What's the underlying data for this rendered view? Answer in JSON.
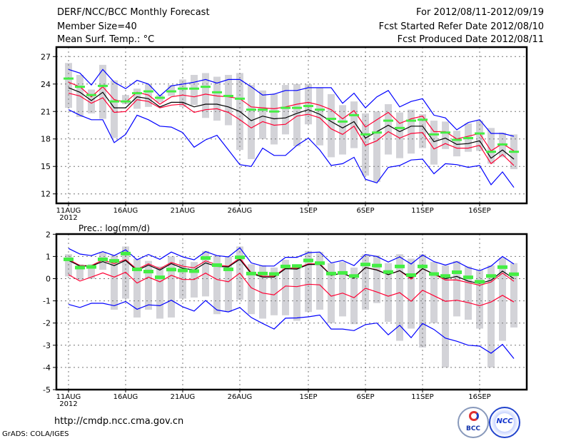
{
  "header": {
    "title": "DERF/NCC/BCC Monthly Forecast",
    "member_size": "Member Size=40",
    "variable": "Mean Surf. Temp.: °C",
    "period": "For 2012/08/11-2012/09/19",
    "started": "Fcst Started Refer Date 2012/08/10",
    "produced": "Fcst Produced Date 2012/08/11"
  },
  "footer": {
    "url": "http://cmdp.ncc.cma.gov.cn",
    "credit": "GrADS: COLA/IGES",
    "logos": [
      "BCC",
      "NCC"
    ]
  },
  "chart_data": [
    {
      "type": "line",
      "title": "Mean Surf. Temp.: °C",
      "x_start": "2012-08-11",
      "days": 40,
      "xtick_labels": [
        "11AUG",
        "16AUG",
        "21AUG",
        "26AUG",
        "1SEP",
        "6SEP",
        "11SEP",
        "16SEP"
      ],
      "xtick_days": [
        0,
        5,
        10,
        15,
        21,
        26,
        31,
        36
      ],
      "year_label": "2012",
      "ylim": [
        11,
        28
      ],
      "yticks": [
        12,
        15,
        18,
        21,
        24,
        27
      ],
      "grid": true,
      "series": [
        {
          "name": "blue-max",
          "color": "#0000ff",
          "values": [
            25.6,
            25.2,
            23.9,
            25.6,
            24.2,
            23.5,
            24.4,
            24.0,
            22.7,
            23.8,
            24.0,
            24.2,
            24.5,
            24.1,
            24.5,
            24.5,
            23.7,
            22.8,
            22.9,
            23.3,
            23.3,
            23.6,
            23.6,
            23.6,
            21.9,
            23.0,
            21.4,
            22.6,
            23.3,
            21.5,
            22.1,
            22.4,
            20.6,
            20.3,
            19.0,
            19.8,
            20.1,
            18.6,
            18.6,
            18.3
          ]
        },
        {
          "name": "red-upper",
          "color": "#ff0033",
          "values": [
            24.2,
            23.7,
            22.6,
            23.7,
            22.3,
            22.0,
            23.1,
            22.8,
            21.8,
            22.6,
            22.8,
            22.6,
            22.9,
            22.7,
            22.6,
            22.4,
            21.5,
            21.4,
            21.3,
            21.5,
            21.8,
            22.0,
            21.7,
            21.2,
            20.2,
            21.1,
            19.3,
            20.1,
            20.9,
            19.7,
            20.2,
            20.5,
            18.8,
            18.8,
            18.0,
            18.3,
            18.6,
            16.7,
            17.5,
            16.7
          ]
        },
        {
          "name": "mean",
          "color": "#000000",
          "values": [
            23.6,
            23.1,
            22.2,
            23.1,
            21.4,
            21.4,
            22.6,
            22.4,
            21.5,
            22.0,
            22.0,
            21.5,
            21.8,
            21.8,
            21.5,
            21.0,
            20.0,
            20.5,
            20.2,
            20.3,
            20.8,
            21.2,
            20.7,
            19.9,
            19.2,
            19.9,
            18.1,
            18.8,
            19.5,
            18.8,
            19.4,
            19.4,
            17.7,
            18.1,
            17.4,
            17.5,
            17.8,
            15.9,
            16.8,
            15.8
          ]
        },
        {
          "name": "red-lower",
          "color": "#ff0033",
          "values": [
            23.0,
            22.7,
            21.9,
            22.5,
            20.9,
            21.0,
            22.3,
            22.1,
            21.4,
            21.7,
            21.8,
            20.9,
            21.2,
            21.3,
            20.9,
            20.1,
            19.2,
            19.9,
            19.5,
            19.6,
            20.5,
            20.7,
            20.3,
            19.1,
            18.5,
            19.4,
            17.3,
            17.8,
            18.8,
            18.1,
            18.6,
            18.7,
            16.9,
            17.5,
            17.0,
            17.0,
            17.3,
            15.3,
            16.3,
            15.1
          ]
        },
        {
          "name": "blue-min",
          "color": "#0000ff",
          "values": [
            21.2,
            20.6,
            20.1,
            20.1,
            17.6,
            18.5,
            20.6,
            20.1,
            19.4,
            19.3,
            18.7,
            17.1,
            17.9,
            18.4,
            16.8,
            15.2,
            15.0,
            17.0,
            16.2,
            16.2,
            17.3,
            18.1,
            16.8,
            15.1,
            15.3,
            16.0,
            13.6,
            13.2,
            14.9,
            15.1,
            15.7,
            15.8,
            14.2,
            15.3,
            15.2,
            14.9,
            15.1,
            13.0,
            14.4,
            12.7
          ]
        }
      ],
      "markers": {
        "name": "green-median",
        "color": "#44ee44",
        "values": [
          24.6,
          23.7,
          22.8,
          23.8,
          22.1,
          22.1,
          23.0,
          23.2,
          22.5,
          23.2,
          23.5,
          23.5,
          23.7,
          23.1,
          22.7,
          22.4,
          21.2,
          21.2,
          21.0,
          21.4,
          21.4,
          21.6,
          21.2,
          20.2,
          19.9,
          20.6,
          18.5,
          18.7,
          20.0,
          19.2,
          20.0,
          20.1,
          18.5,
          18.7,
          17.9,
          18.1,
          18.6,
          16.6,
          17.4,
          16.6
        ]
      },
      "ranges": {
        "name": "gray-spread",
        "color": "#d3d3d8",
        "values": [
          [
            21.4,
            26.3
          ],
          [
            20.4,
            25.0
          ],
          [
            20.8,
            23.4
          ],
          [
            20.2,
            26.1
          ],
          [
            18.1,
            24.4
          ],
          [
            21.8,
            22.8
          ],
          [
            21.3,
            23.5
          ],
          [
            21.5,
            24.0
          ],
          [
            22.0,
            22.8
          ],
          [
            22.7,
            23.9
          ],
          [
            21.5,
            24.5
          ],
          [
            21.7,
            25.0
          ],
          [
            20.3,
            25.2
          ],
          [
            20.0,
            24.8
          ],
          [
            19.5,
            25.0
          ],
          [
            16.8,
            25.2
          ],
          [
            15.8,
            23.9
          ],
          [
            18.0,
            23.3
          ],
          [
            17.4,
            22.9
          ],
          [
            18.5,
            23.9
          ],
          [
            17.2,
            24.0
          ],
          [
            19.6,
            24.0
          ],
          [
            17.3,
            23.6
          ],
          [
            16.0,
            22.9
          ],
          [
            16.3,
            21.7
          ],
          [
            17.0,
            22.1
          ],
          [
            14.0,
            20.8
          ],
          [
            13.3,
            21.0
          ],
          [
            16.3,
            21.8
          ],
          [
            15.9,
            20.9
          ],
          [
            16.4,
            21.2
          ],
          [
            17.0,
            20.7
          ],
          [
            15.2,
            20.0
          ],
          [
            16.9,
            19.9
          ],
          [
            16.1,
            18.9
          ],
          [
            16.6,
            19.7
          ],
          [
            16.7,
            20.0
          ],
          [
            15.3,
            19.2
          ],
          [
            16.0,
            18.7
          ],
          [
            14.7,
            18.5
          ]
        ]
      }
    },
    {
      "type": "line",
      "title": "Prec.: log(mm/d)",
      "x_start": "2012-08-11",
      "days": 40,
      "xtick_labels": [
        "11AUG",
        "16AUG",
        "21AUG",
        "26AUG",
        "1SEP",
        "6SEP",
        "11SEP",
        "16SEP"
      ],
      "xtick_days": [
        0,
        5,
        10,
        15,
        21,
        26,
        31,
        36
      ],
      "year_label": "2012",
      "ylim": [
        -5,
        2
      ],
      "yticks": [
        -5,
        -4,
        -3,
        -2,
        -1,
        0,
        1,
        2
      ],
      "grid": true,
      "series": [
        {
          "name": "blue-max",
          "color": "#0000ff",
          "values": [
            1.36,
            1.11,
            1.04,
            1.22,
            1.04,
            1.3,
            0.85,
            1.09,
            0.87,
            1.2,
            0.98,
            0.85,
            1.22,
            1.04,
            0.98,
            1.39,
            0.71,
            0.57,
            0.57,
            0.96,
            0.96,
            1.17,
            1.2,
            0.71,
            0.82,
            0.59,
            1.09,
            1.0,
            0.75,
            0.98,
            0.66,
            1.07,
            0.77,
            0.61,
            0.77,
            0.5,
            0.36,
            0.57,
            1.0,
            0.66
          ]
        },
        {
          "name": "red-upper",
          "color": "#ff0033",
          "values": [
            0.87,
            0.59,
            0.59,
            0.84,
            0.68,
            0.86,
            0.42,
            0.67,
            0.45,
            0.73,
            0.56,
            0.49,
            0.8,
            0.62,
            0.56,
            0.93,
            0.27,
            0.11,
            0.11,
            0.49,
            0.47,
            0.67,
            0.67,
            0.15,
            0.25,
            0.02,
            0.5,
            0.4,
            0.18,
            0.36,
            -0.02,
            0.45,
            0.2,
            -0.06,
            -0.06,
            -0.18,
            -0.3,
            -0.15,
            0.25,
            -0.12
          ]
        },
        {
          "name": "mean",
          "color": "#000000",
          "values": [
            0.82,
            0.57,
            0.57,
            0.77,
            0.59,
            0.82,
            0.37,
            0.61,
            0.39,
            0.68,
            0.47,
            0.39,
            0.71,
            0.55,
            0.53,
            0.87,
            0.23,
            0.07,
            0.07,
            0.45,
            0.43,
            0.64,
            0.64,
            0.15,
            0.25,
            0.02,
            0.5,
            0.39,
            0.18,
            0.36,
            0.04,
            0.45,
            0.21,
            0.0,
            0.1,
            -0.11,
            -0.22,
            -0.07,
            0.34,
            0.0
          ]
        },
        {
          "name": "red-lower",
          "color": "#ff0033",
          "values": [
            0.18,
            -0.11,
            0.07,
            0.26,
            0.07,
            0.29,
            -0.2,
            0.07,
            -0.14,
            0.15,
            -0.04,
            -0.04,
            0.25,
            -0.04,
            -0.14,
            0.25,
            -0.41,
            -0.65,
            -0.73,
            -0.33,
            -0.36,
            -0.25,
            -0.28,
            -0.79,
            -0.65,
            -0.86,
            -0.43,
            -0.6,
            -0.79,
            -0.63,
            -1.02,
            -0.52,
            -0.77,
            -1.02,
            -0.97,
            -1.08,
            -1.22,
            -1.05,
            -0.75,
            -1.05
          ]
        },
        {
          "name": "blue-min",
          "color": "#0000ff",
          "values": [
            -1.16,
            -1.3,
            -1.11,
            -1.11,
            -1.22,
            -1.03,
            -1.38,
            -1.18,
            -1.22,
            -0.97,
            -1.27,
            -1.46,
            -0.98,
            -1.41,
            -1.5,
            -1.3,
            -1.75,
            -2.02,
            -2.27,
            -1.78,
            -1.77,
            -1.72,
            -1.64,
            -2.27,
            -2.27,
            -2.34,
            -2.07,
            -2.0,
            -2.53,
            -2.1,
            -2.66,
            -2.02,
            -2.29,
            -2.68,
            -2.82,
            -3.0,
            -3.04,
            -3.36,
            -2.96,
            -3.6
          ]
        }
      ],
      "markers": {
        "name": "green-median",
        "color": "#44ee44",
        "values": [
          0.87,
          0.5,
          0.53,
          0.87,
          0.8,
          1.13,
          0.42,
          0.32,
          0.06,
          0.41,
          0.37,
          0.34,
          0.93,
          0.61,
          0.42,
          0.96,
          0.23,
          0.23,
          0.21,
          0.55,
          0.57,
          0.82,
          0.7,
          0.23,
          0.26,
          0.12,
          0.64,
          0.59,
          0.3,
          0.55,
          0.16,
          0.55,
          0.21,
          0.12,
          0.29,
          0.06,
          -0.14,
          0.12,
          0.52,
          0.2
        ]
      },
      "ranges": {
        "name": "gray-spread",
        "color": "#d3d3d8",
        "values": [
          [
            0.1,
            1.1
          ],
          [
            -0.05,
            0.65
          ],
          [
            0.0,
            0.65
          ],
          [
            0.4,
            1.2
          ],
          [
            -1.4,
            1.05
          ],
          [
            -0.9,
            1.45
          ],
          [
            -1.75,
            0.9
          ],
          [
            -1.4,
            0.8
          ],
          [
            -1.8,
            0.55
          ],
          [
            -1.75,
            1.0
          ],
          [
            -0.9,
            0.85
          ],
          [
            -0.85,
            0.75
          ],
          [
            -0.8,
            1.25
          ],
          [
            -1.6,
            1.05
          ],
          [
            -1.5,
            1.0
          ],
          [
            -0.95,
            1.45
          ],
          [
            -1.6,
            0.65
          ],
          [
            -1.8,
            0.6
          ],
          [
            -1.65,
            0.5
          ],
          [
            -1.65,
            0.85
          ],
          [
            -1.9,
            0.6
          ],
          [
            -1.5,
            1.25
          ],
          [
            -1.4,
            1.2
          ],
          [
            -2.0,
            0.7
          ],
          [
            -1.7,
            0.75
          ],
          [
            -2.05,
            0.5
          ],
          [
            -1.4,
            1.1
          ],
          [
            -1.1,
            1.05
          ],
          [
            -1.95,
            0.7
          ],
          [
            -2.8,
            1.1
          ],
          [
            -2.25,
            0.9
          ],
          [
            -3.1,
            1.1
          ],
          [
            -2.0,
            0.75
          ],
          [
            -4.0,
            0.6
          ],
          [
            -1.7,
            0.8
          ],
          [
            -1.85,
            0.55
          ],
          [
            -2.25,
            0.4
          ],
          [
            -4.0,
            0.6
          ],
          [
            -2.8,
            0.95
          ],
          [
            -2.2,
            0.7
          ]
        ]
      }
    }
  ]
}
